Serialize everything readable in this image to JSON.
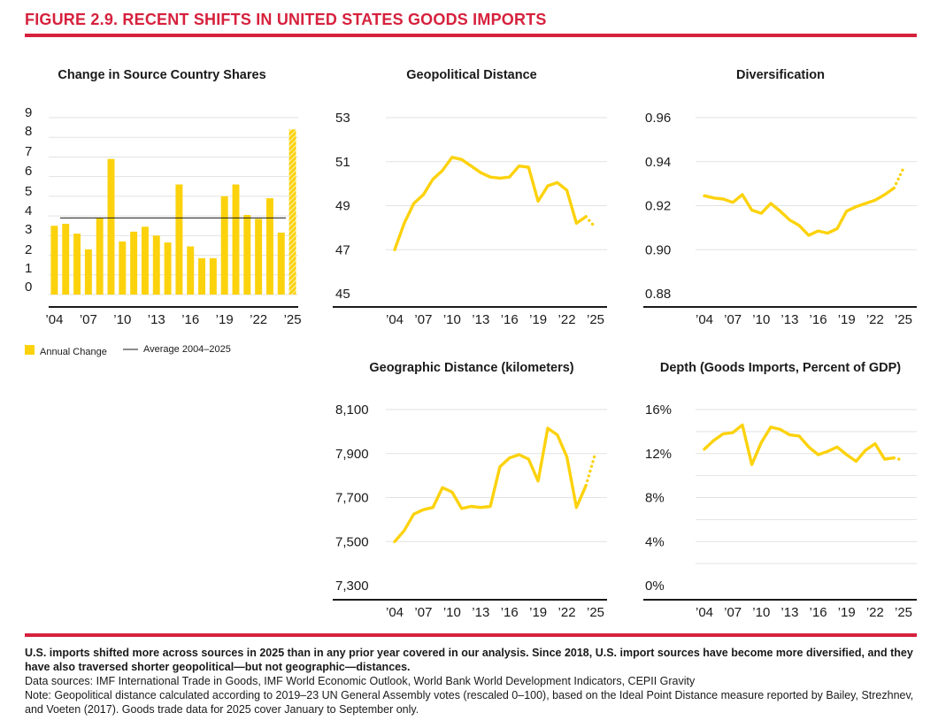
{
  "figure_title": "FIGURE 2.9. RECENT SHIFTS IN UNITED STATES GOODS IMPORTS",
  "colors": {
    "accent": "#d6213d",
    "series": "#fcd20d",
    "axis": "#1a1a1a",
    "grid": "#e2e2e2"
  },
  "notes": {
    "summary": "U.S. imports shifted more across sources in 2025 than in any prior year covered in our analysis. Since 2018, U.S. import sources have become more diversified, and they have also traversed shorter geopolitical—but not geographic—distances.",
    "sources": "Data sources: IMF International Trade in Goods, IMF World Economic Outlook, World Bank World Development Indicators, CEPII Gravity",
    "note": "Note: Geopolitical distance calculated according to 2019–23 UN General Assembly votes (rescaled 0–100), based on the Ideal Point Distance measure reported by Bailey, Strezhnev, and Voeten (2017). Goods trade data for 2025 cover January to September only."
  },
  "chart_data": [
    {
      "id": "shares",
      "type": "bar",
      "title": "Change in Source Country Shares",
      "x": [
        2004,
        2005,
        2006,
        2007,
        2008,
        2009,
        2010,
        2011,
        2012,
        2013,
        2014,
        2015,
        2016,
        2017,
        2018,
        2019,
        2020,
        2021,
        2022,
        2023,
        2024,
        2025
      ],
      "values": [
        3.5,
        3.6,
        3.1,
        2.3,
        3.9,
        6.9,
        2.7,
        3.2,
        3.45,
        3.0,
        2.65,
        5.6,
        2.45,
        1.85,
        1.85,
        5.0,
        5.6,
        4.05,
        3.85,
        4.9,
        3.15,
        8.4
      ],
      "projected": [
        2025
      ],
      "average": 3.9,
      "ylim": [
        0,
        9
      ],
      "yticks": [
        0,
        1,
        2,
        3,
        4,
        5,
        6,
        7,
        8,
        9
      ],
      "xtick_years": [
        2004,
        2007,
        2010,
        2013,
        2016,
        2019,
        2022,
        2025
      ],
      "xtick_labels": [
        "’04",
        "’07",
        "’10",
        "’13",
        "’16",
        "’19",
        "’22",
        "’25"
      ],
      "legend": [
        {
          "kind": "swatch",
          "label": "Annual Change"
        },
        {
          "kind": "line",
          "label": "Average 2004–2025"
        }
      ]
    },
    {
      "id": "geopolitical",
      "type": "line",
      "title": "Geopolitical Distance",
      "x": [
        2004,
        2005,
        2006,
        2007,
        2008,
        2009,
        2010,
        2011,
        2012,
        2013,
        2014,
        2015,
        2016,
        2017,
        2018,
        2019,
        2020,
        2021,
        2022,
        2023,
        2024
      ],
      "values": [
        47.0,
        48.2,
        49.1,
        49.5,
        50.2,
        50.6,
        51.2,
        51.1,
        50.8,
        50.5,
        50.3,
        50.25,
        50.3,
        50.8,
        50.75,
        49.2,
        49.9,
        50.05,
        49.7,
        48.2,
        48.5
      ],
      "projected_x": [
        2024,
        2025
      ],
      "projected_values": [
        48.5,
        48.0
      ],
      "ylim": [
        45,
        53
      ],
      "yticks": [
        45,
        47,
        49,
        51,
        53
      ],
      "ytick_labels": [
        "45",
        "47",
        "49",
        "51",
        "53"
      ],
      "xtick_years": [
        2004,
        2007,
        2010,
        2013,
        2016,
        2019,
        2022,
        2025
      ],
      "xtick_labels": [
        "’04",
        "’07",
        "’10",
        "’13",
        "’16",
        "’19",
        "’22",
        "’25"
      ]
    },
    {
      "id": "diversification",
      "type": "line",
      "title": "Diversification",
      "x": [
        2004,
        2005,
        2006,
        2007,
        2008,
        2009,
        2010,
        2011,
        2012,
        2013,
        2014,
        2015,
        2016,
        2017,
        2018,
        2019,
        2020,
        2021,
        2022,
        2023,
        2024
      ],
      "values": [
        0.9245,
        0.9235,
        0.923,
        0.9215,
        0.925,
        0.918,
        0.9165,
        0.921,
        0.9175,
        0.9135,
        0.911,
        0.9065,
        0.9085,
        0.9075,
        0.9095,
        0.9175,
        0.9195,
        0.921,
        0.9225,
        0.925,
        0.928
      ],
      "projected_x": [
        2024,
        2025
      ],
      "projected_values": [
        0.928,
        0.937
      ],
      "ylim": [
        0.88,
        0.96
      ],
      "yticks": [
        0.88,
        0.9,
        0.92,
        0.94,
        0.96
      ],
      "ytick_labels": [
        "0.88",
        "0.90",
        "0.92",
        "0.94",
        "0.96"
      ],
      "xtick_years": [
        2004,
        2007,
        2010,
        2013,
        2016,
        2019,
        2022,
        2025
      ],
      "xtick_labels": [
        "’04",
        "’07",
        "’10",
        "’13",
        "’16",
        "’19",
        "’22",
        "’25"
      ]
    },
    {
      "id": "geographic",
      "type": "line",
      "title": "Geographic Distance (kilometers)",
      "x": [
        2004,
        2005,
        2006,
        2007,
        2008,
        2009,
        2010,
        2011,
        2012,
        2013,
        2014,
        2015,
        2016,
        2017,
        2018,
        2019,
        2020,
        2021,
        2022,
        2023,
        2024
      ],
      "values": [
        7500,
        7550,
        7625,
        7645,
        7655,
        7745,
        7725,
        7650,
        7660,
        7655,
        7660,
        7840,
        7880,
        7895,
        7875,
        7775,
        8015,
        7985,
        7885,
        7655,
        7755
      ],
      "projected_x": [
        2024,
        2025
      ],
      "projected_values": [
        7755,
        7905
      ],
      "ylim": [
        7300,
        8100
      ],
      "yticks": [
        7300,
        7500,
        7700,
        7900,
        8100
      ],
      "ytick_labels": [
        "7,300",
        "7,500",
        "7,700",
        "7,900",
        "8,100"
      ],
      "xtick_years": [
        2004,
        2007,
        2010,
        2013,
        2016,
        2019,
        2022,
        2025
      ],
      "xtick_labels": [
        "’04",
        "’07",
        "’10",
        "’13",
        "’16",
        "’19",
        "’22",
        "’25"
      ]
    },
    {
      "id": "depth",
      "type": "line",
      "title": "Depth (Goods Imports, Percent of GDP)",
      "x": [
        2004,
        2005,
        2006,
        2007,
        2008,
        2009,
        2010,
        2011,
        2012,
        2013,
        2014,
        2015,
        2016,
        2017,
        2018,
        2019,
        2020,
        2021,
        2022,
        2023,
        2024
      ],
      "values": [
        12.4,
        13.2,
        13.8,
        13.9,
        14.6,
        11.0,
        13.0,
        14.4,
        14.2,
        13.7,
        13.6,
        12.6,
        11.9,
        12.2,
        12.6,
        11.9,
        11.3,
        12.3,
        12.9,
        11.5,
        11.6
      ],
      "projected_x": [
        2024,
        2025
      ],
      "projected_values": [
        11.6,
        11.4
      ],
      "ylim": [
        0,
        16
      ],
      "yticks": [
        0,
        4,
        8,
        12,
        16
      ],
      "ytick_labels": [
        "0%",
        "4%",
        "8%",
        "12%",
        "16%"
      ],
      "ygrid_values": [
        2,
        4,
        6,
        8,
        10,
        12,
        14,
        16
      ],
      "xtick_years": [
        2004,
        2007,
        2010,
        2013,
        2016,
        2019,
        2022,
        2025
      ],
      "xtick_labels": [
        "’04",
        "’07",
        "’10",
        "’13",
        "’16",
        "’19",
        "’22",
        "’25"
      ]
    }
  ]
}
